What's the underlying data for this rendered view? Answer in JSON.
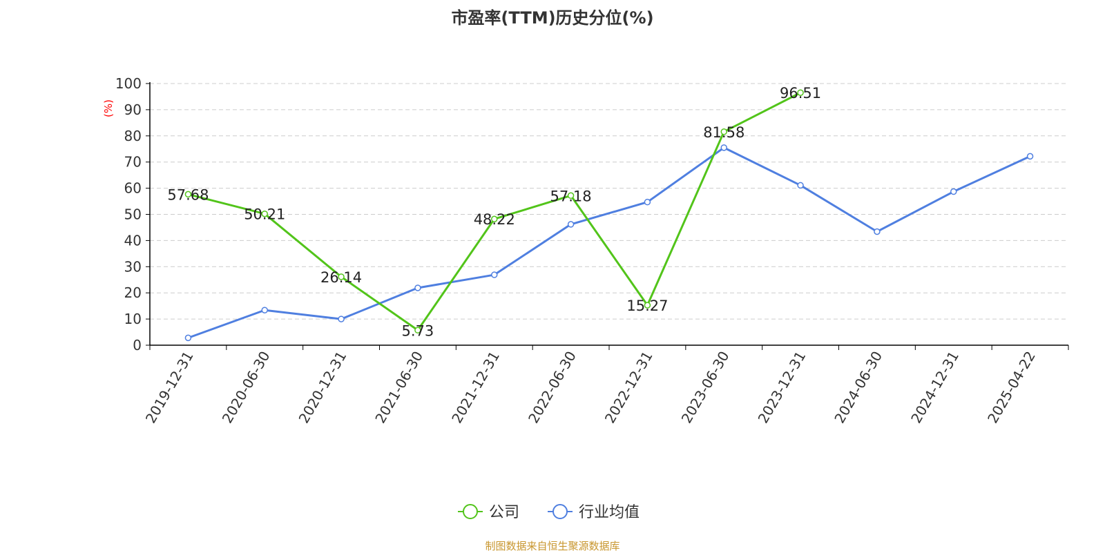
{
  "colors": {
    "company": "#52c41a",
    "industry": "#4f7fe0",
    "grid": "#cccccc",
    "axis": "#000000",
    "ylabel": "#ff0000",
    "source": "#c8962e"
  },
  "chart_data": {
    "type": "line",
    "title": "市盈率(TTM)历史分位(%)",
    "ylabel": "(%)",
    "xlabel": "",
    "ylim": [
      0,
      100
    ],
    "yticks": [
      0,
      10,
      20,
      30,
      40,
      50,
      60,
      70,
      80,
      90,
      100
    ],
    "grid": true,
    "legend_position": "bottom-center",
    "categories": [
      "2019-12-31",
      "2020-06-30",
      "2020-12-31",
      "2021-06-30",
      "2021-12-31",
      "2022-06-30",
      "2022-12-31",
      "2023-06-30",
      "2023-12-31",
      "2024-06-30",
      "2024-12-31",
      "2025-04-22"
    ],
    "series": [
      {
        "name": "公司",
        "color_key": "company",
        "values": [
          57.68,
          50.21,
          26.14,
          5.73,
          48.22,
          57.18,
          15.27,
          81.58,
          96.51,
          null,
          null,
          null
        ],
        "labels": [
          "57.68",
          "50.21",
          "26.14",
          "5.73",
          "48.22",
          "57.18",
          "15.27",
          "81.58",
          "96.51",
          null,
          null,
          null
        ]
      },
      {
        "name": "行业均值",
        "color_key": "industry",
        "values": [
          2.8,
          13.4,
          10.0,
          21.9,
          26.9,
          46.2,
          54.7,
          75.5,
          61.1,
          43.4,
          58.7,
          72.2
        ]
      }
    ]
  },
  "source_text": "制图数据来自恒生聚源数据库"
}
